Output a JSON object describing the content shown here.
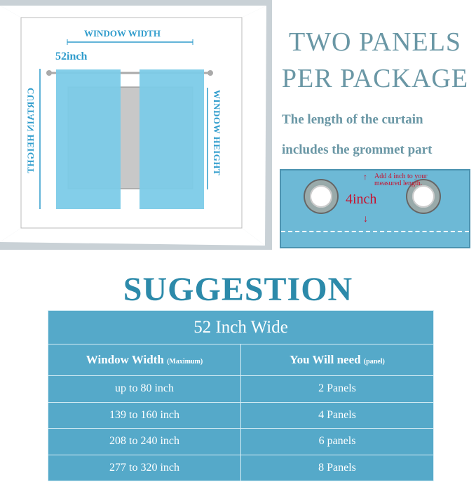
{
  "diagram": {
    "window_width_label": "WINDOW WIDTH",
    "panel_width_label": "52inch",
    "curtain_height_label": "CURTAIN HEIGHT",
    "window_height_label": "WINDOW HEIGHT"
  },
  "headline": {
    "line1": "TWO PANELS",
    "line2": "PER PACKAGE"
  },
  "note": {
    "line1": "The length of the curtain",
    "line2": "includes the grommet  part"
  },
  "grommet_detail": {
    "measure": "4inch",
    "hint_line1": "Add 4 inch to your",
    "hint_line2": "measured length."
  },
  "suggestion": {
    "title": "SUGGESTION",
    "table_caption": "52 Inch Wide",
    "col1": "Window Width",
    "col1_sub": "(Maximum)",
    "col2": "You Will need",
    "col2_sub": "(panel)",
    "rows": [
      {
        "width": "up to 80 inch",
        "need": "2 Panels"
      },
      {
        "width": "139 to 160 inch",
        "need": "4 Panels"
      },
      {
        "width": "208 to 240 inch",
        "need": "6 panels"
      },
      {
        "width": "277 to 320 inch",
        "need": "8 Panels"
      }
    ]
  },
  "colors": {
    "curtain": "#7ccbe8",
    "table": "#55a9c9",
    "label": "#2f9ccc",
    "accent_red": "#c8102e"
  }
}
